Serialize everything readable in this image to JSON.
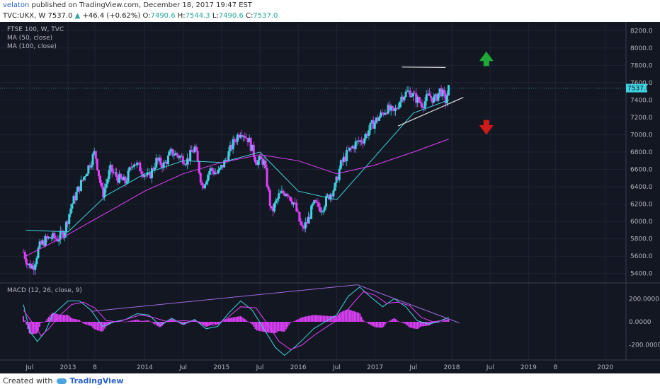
{
  "header": {
    "user": "velaton",
    "published": " published on TradingView.com, December 18, 2017 19:47 EST",
    "symbol": "TVC:UKX, W",
    "last": "7537.0",
    "change_arrow": "▲",
    "change": "+46.4 (+0.62%)",
    "o_label": "O:",
    "o_val": "7490.6",
    "h_label": "H:",
    "h_val": "7544.3",
    "l_label": "L:",
    "l_val": "7490.6",
    "c_label": "C:",
    "c_val": "7537.0"
  },
  "footer": {
    "created": "Created with",
    "brand": "TradingView"
  },
  "colors": {
    "bg": "#131722",
    "grid": "#1e2435",
    "text": "#b2b5be",
    "candle_up": "#3fd1e0",
    "candle_down": "#e040fb",
    "ma50": "#3fd1e0",
    "ma100": "#e040fb",
    "macd_line": "#3fd1e0",
    "signal_line": "#e040fb",
    "up_arrow": "#1fa83a",
    "down_arrow": "#d11b1b"
  },
  "chart_data": [
    {
      "type": "candlestick",
      "legend": [
        "FTSE 100, W, TVC",
        "MA (50, close)",
        "MA (100, close)"
      ],
      "price_label": "7537.0",
      "ylim": [
        5300,
        8300
      ],
      "y_ticks": [
        "8200.0",
        "8000.0",
        "7800.0",
        "7600.0",
        "7400.0",
        "7200.0",
        "7000.0",
        "6800.0",
        "6600.0",
        "6400.0",
        "6200.0",
        "6000.0",
        "5800.0",
        "5600.0",
        "5400.0"
      ],
      "x_ticks": [
        "Jul",
        "2013",
        "8",
        "2014",
        "Jul",
        "2015",
        "Jul",
        "2016",
        "Jul",
        "2017",
        "Jul",
        "2018",
        "Jul",
        "2019",
        "8",
        "2020"
      ],
      "close_path": [
        [
          2012.42,
          5650
        ],
        [
          2012.48,
          5500
        ],
        [
          2012.55,
          5480
        ],
        [
          2012.62,
          5700
        ],
        [
          2012.7,
          5780
        ],
        [
          2012.78,
          5820
        ],
        [
          2012.86,
          5800
        ],
        [
          2012.95,
          5880
        ],
        [
          2013.05,
          6200
        ],
        [
          2013.15,
          6400
        ],
        [
          2013.25,
          6600
        ],
        [
          2013.35,
          6800
        ],
        [
          2013.45,
          6300
        ],
        [
          2013.55,
          6600
        ],
        [
          2013.65,
          6500
        ],
        [
          2013.75,
          6450
        ],
        [
          2013.85,
          6700
        ],
        [
          2013.95,
          6600
        ],
        [
          2014.05,
          6500
        ],
        [
          2014.15,
          6700
        ],
        [
          2014.25,
          6650
        ],
        [
          2014.35,
          6800
        ],
        [
          2014.45,
          6750
        ],
        [
          2014.55,
          6700
        ],
        [
          2014.65,
          6850
        ],
        [
          2014.75,
          6400
        ],
        [
          2014.85,
          6600
        ],
        [
          2014.95,
          6550
        ],
        [
          2015.05,
          6700
        ],
        [
          2015.15,
          6900
        ],
        [
          2015.25,
          7050
        ],
        [
          2015.35,
          6950
        ],
        [
          2015.45,
          6700
        ],
        [
          2015.55,
          6700
        ],
        [
          2015.65,
          6100
        ],
        [
          2015.75,
          6300
        ],
        [
          2015.85,
          6350
        ],
        [
          2015.95,
          6200
        ],
        [
          2016.05,
          5900
        ],
        [
          2016.12,
          6000
        ],
        [
          2016.2,
          6200
        ],
        [
          2016.3,
          6150
        ],
        [
          2016.4,
          6300
        ],
        [
          2016.48,
          6400
        ],
        [
          2016.55,
          6650
        ],
        [
          2016.65,
          6800
        ],
        [
          2016.75,
          6900
        ],
        [
          2016.85,
          6950
        ],
        [
          2016.95,
          7100
        ],
        [
          2017.05,
          7200
        ],
        [
          2017.15,
          7300
        ],
        [
          2017.25,
          7250
        ],
        [
          2017.35,
          7450
        ],
        [
          2017.45,
          7500
        ],
        [
          2017.55,
          7400
        ],
        [
          2017.62,
          7350
        ],
        [
          2017.7,
          7450
        ],
        [
          2017.78,
          7400
        ],
        [
          2017.85,
          7520
        ],
        [
          2017.92,
          7390
        ],
        [
          2017.96,
          7537
        ]
      ],
      "triangle_top": [
        [
          2017.35,
          7780
        ],
        [
          2017.92,
          7775
        ]
      ],
      "triangle_bottom": [
        [
          2017.3,
          7100
        ],
        [
          2018.15,
          7430
        ]
      ],
      "ma50_path": [
        [
          2012.45,
          5900
        ],
        [
          2013.0,
          5880
        ],
        [
          2013.5,
          6300
        ],
        [
          2014.0,
          6550
        ],
        [
          2014.5,
          6700
        ],
        [
          2015.0,
          6680
        ],
        [
          2015.5,
          6800
        ],
        [
          2016.0,
          6350
        ],
        [
          2016.5,
          6250
        ],
        [
          2017.0,
          6750
        ],
        [
          2017.5,
          7250
        ],
        [
          2017.96,
          7400
        ]
      ],
      "ma100_path": [
        [
          2012.45,
          5600
        ],
        [
          2013.0,
          5850
        ],
        [
          2013.5,
          6100
        ],
        [
          2014.0,
          6350
        ],
        [
          2014.5,
          6550
        ],
        [
          2015.0,
          6680
        ],
        [
          2015.5,
          6770
        ],
        [
          2016.0,
          6700
        ],
        [
          2016.5,
          6550
        ],
        [
          2017.0,
          6650
        ],
        [
          2017.5,
          6800
        ],
        [
          2017.96,
          6950
        ]
      ]
    },
    {
      "type": "histogram+line",
      "legend": "MACD (12, 26, close, 9)",
      "ylim": [
        -330,
        330
      ],
      "y_ticks": [
        "200.0000",
        "0.0000",
        "-200.0000"
      ],
      "macd_path": [
        [
          2012.42,
          150
        ],
        [
          2012.5,
          -80
        ],
        [
          2012.6,
          -170
        ],
        [
          2012.7,
          -90
        ],
        [
          2012.8,
          60
        ],
        [
          2012.9,
          120
        ],
        [
          2013.0,
          180
        ],
        [
          2013.15,
          180
        ],
        [
          2013.3,
          100
        ],
        [
          2013.45,
          -40
        ],
        [
          2013.6,
          0
        ],
        [
          2013.75,
          20
        ],
        [
          2013.9,
          70
        ],
        [
          2014.05,
          60
        ],
        [
          2014.2,
          -30
        ],
        [
          2014.35,
          30
        ],
        [
          2014.5,
          -20
        ],
        [
          2014.65,
          20
        ],
        [
          2014.8,
          -60
        ],
        [
          2014.95,
          -40
        ],
        [
          2015.1,
          80
        ],
        [
          2015.25,
          180
        ],
        [
          2015.4,
          100
        ],
        [
          2015.55,
          -60
        ],
        [
          2015.7,
          -220
        ],
        [
          2015.82,
          -290
        ],
        [
          2015.95,
          -220
        ],
        [
          2016.05,
          -160
        ],
        [
          2016.2,
          -60
        ],
        [
          2016.35,
          0
        ],
        [
          2016.5,
          60
        ],
        [
          2016.65,
          220
        ],
        [
          2016.8,
          300
        ],
        [
          2016.95,
          210
        ],
        [
          2017.1,
          130
        ],
        [
          2017.25,
          200
        ],
        [
          2017.4,
          130
        ],
        [
          2017.55,
          10
        ],
        [
          2017.7,
          -20
        ],
        [
          2017.82,
          0
        ],
        [
          2017.96,
          40
        ]
      ],
      "signal_path": [
        [
          2012.42,
          100
        ],
        [
          2012.55,
          -20
        ],
        [
          2012.65,
          -120
        ],
        [
          2012.75,
          -60
        ],
        [
          2012.9,
          60
        ],
        [
          2013.05,
          150
        ],
        [
          2013.2,
          170
        ],
        [
          2013.35,
          120
        ],
        [
          2013.5,
          10
        ],
        [
          2013.65,
          0
        ],
        [
          2013.8,
          30
        ],
        [
          2013.95,
          60
        ],
        [
          2014.1,
          40
        ],
        [
          2014.3,
          0
        ],
        [
          2014.5,
          10
        ],
        [
          2014.7,
          0
        ],
        [
          2014.9,
          -30
        ],
        [
          2015.05,
          20
        ],
        [
          2015.25,
          130
        ],
        [
          2015.45,
          120
        ],
        [
          2015.6,
          -20
        ],
        [
          2015.75,
          -170
        ],
        [
          2015.9,
          -240
        ],
        [
          2016.05,
          -200
        ],
        [
          2016.2,
          -120
        ],
        [
          2016.4,
          -30
        ],
        [
          2016.55,
          30
        ],
        [
          2016.7,
          150
        ],
        [
          2016.85,
          260
        ],
        [
          2017.0,
          230
        ],
        [
          2017.15,
          160
        ],
        [
          2017.3,
          170
        ],
        [
          2017.45,
          140
        ],
        [
          2017.6,
          40
        ],
        [
          2017.75,
          0
        ],
        [
          2017.96,
          20
        ]
      ],
      "divergence_line": [
        [
          2016.77,
          320
        ],
        [
          2018.1,
          -10
        ]
      ],
      "divergence_line2": [
        [
          2013.3,
          90
        ],
        [
          2016.77,
          320
        ]
      ]
    }
  ]
}
